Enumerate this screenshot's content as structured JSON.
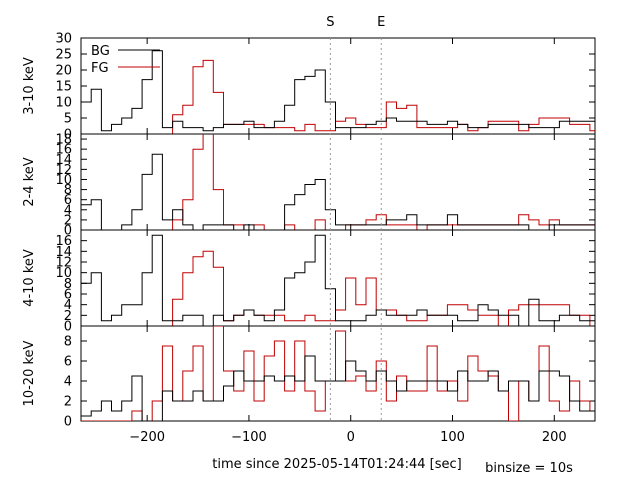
{
  "chart_data": {
    "type": "step",
    "markers": [
      {
        "label": "S",
        "x": -20
      },
      {
        "label": "E",
        "x": 30
      }
    ],
    "xlabel": "time since 2025-05-14T01:24:44 [sec]",
    "note": "binsize = 10s",
    "xlim": [
      -265,
      240
    ],
    "xticks": [
      -200,
      -100,
      0,
      100,
      200
    ],
    "bins_start": -265,
    "bin_width": 10,
    "legend": [
      {
        "name": "BG",
        "color": "#000000"
      },
      {
        "name": "FG",
        "color": "#c00000"
      }
    ],
    "panels": [
      {
        "ylabel": "3-10 keV",
        "ylim": [
          0,
          30
        ],
        "yticks": [
          0,
          5,
          10,
          15,
          20,
          25,
          30
        ],
        "series": [
          {
            "name": "BG",
            "color": "#000000",
            "values": [
              10,
              14,
              1,
              3,
              5,
              8,
              17,
              26,
              2,
              4,
              2,
              2,
              1,
              2,
              3,
              3,
              4,
              2,
              2,
              4,
              9,
              17,
              18,
              20,
              10,
              2,
              2,
              2,
              3,
              4,
              5,
              4,
              4,
              4,
              3,
              3,
              4,
              3,
              2,
              2,
              3,
              3,
              3,
              3,
              2,
              2,
              2,
              4,
              4,
              4,
              4
            ]
          },
          {
            "name": "FG",
            "color": "#c00000",
            "values": [
              0,
              0,
              0,
              0,
              0,
              0,
              0,
              0,
              0,
              6,
              9,
              21,
              23,
              13,
              3,
              3,
              3,
              3,
              2,
              2,
              2,
              1,
              3,
              1,
              1,
              4,
              5,
              3,
              2,
              2,
              10,
              8,
              9,
              2,
              2,
              2,
              2,
              3,
              1,
              2,
              4,
              4,
              4,
              1,
              3,
              5,
              5,
              5,
              3,
              3,
              1
            ]
          }
        ]
      },
      {
        "ylabel": "2-4 keV",
        "ylim": [
          0,
          19
        ],
        "yticks": [
          0,
          2,
          4,
          6,
          8,
          10,
          12,
          14,
          16,
          18
        ],
        "series": [
          {
            "name": "BG",
            "color": "#000000",
            "values": [
              5,
              6,
              0,
              0,
              1,
              4,
              11,
              15,
              2,
              4,
              1,
              0,
              1,
              1,
              1,
              0,
              1,
              0,
              0,
              0,
              5,
              7,
              9,
              10,
              4,
              1,
              1,
              1,
              1,
              1,
              2,
              2,
              3,
              1,
              1,
              1,
              3,
              1,
              1,
              1,
              1,
              1,
              1,
              1,
              0,
              0,
              1,
              1,
              1,
              1,
              1
            ]
          },
          {
            "name": "FG",
            "color": "#c00000",
            "values": [
              0,
              0,
              0,
              0,
              0,
              0,
              0,
              0,
              0,
              2,
              6,
              16,
              20,
              8,
              1,
              1,
              0,
              1,
              0,
              0,
              1,
              0,
              0,
              2,
              0,
              0,
              1,
              1,
              2,
              3,
              1,
              1,
              1,
              0,
              1,
              1,
              1,
              1,
              1,
              1,
              1,
              1,
              1,
              3,
              2,
              1,
              2,
              1,
              1,
              1,
              1
            ]
          }
        ]
      },
      {
        "ylabel": "4-10 keV",
        "ylim": [
          0,
          18
        ],
        "yticks": [
          0,
          2,
          4,
          6,
          8,
          10,
          12,
          14,
          16
        ],
        "series": [
          {
            "name": "BG",
            "color": "#000000",
            "values": [
              8,
              10,
              1,
              2,
              4,
              4,
              10,
              17,
              1,
              1,
              2,
              2,
              0,
              2,
              1,
              2,
              3,
              2,
              1,
              3,
              9,
              10,
              12,
              17,
              7,
              1,
              1,
              1,
              2,
              3,
              2,
              2,
              2,
              3,
              2,
              2,
              2,
              1,
              1,
              4,
              3,
              2,
              2,
              0,
              5,
              1,
              1,
              2,
              2,
              1,
              1
            ]
          },
          {
            "name": "FG",
            "color": "#c00000",
            "values": [
              0,
              0,
              0,
              0,
              0,
              0,
              0,
              0,
              0,
              5,
              10,
              13,
              14,
              11,
              1,
              2,
              3,
              2,
              2,
              2,
              1,
              1,
              2,
              1,
              1,
              3,
              9,
              4,
              9,
              3,
              3,
              2,
              1,
              1,
              2,
              2,
              4,
              4,
              3,
              2,
              2,
              0,
              3,
              4,
              4,
              4,
              4,
              4,
              2,
              2,
              0
            ]
          }
        ]
      },
      {
        "ylabel": "10-20 keV",
        "ylim": [
          0,
          9.5
        ],
        "yticks": [
          0,
          2,
          4,
          6,
          8
        ],
        "series": [
          {
            "name": "BG",
            "color": "#000000",
            "values": [
              0.5,
              1,
              2,
              1,
              2,
              4.5,
              0,
              0,
              3,
              2,
              2,
              3,
              2,
              2,
              3.5,
              5,
              4,
              4,
              4.5,
              4,
              4.5,
              4,
              6.5,
              4,
              4,
              4,
              6,
              5,
              4,
              5,
              4,
              3,
              4,
              4,
              4,
              4,
              3,
              5,
              4,
              4,
              5,
              3,
              4,
              4,
              2,
              5,
              5,
              4.5,
              2,
              1,
              1
            ]
          },
          {
            "name": "FG",
            "color": "#c00000",
            "values": [
              0,
              0,
              0,
              0,
              0,
              1,
              0,
              2,
              7.5,
              2,
              5,
              7.5,
              2,
              9.5,
              5,
              3,
              7,
              2,
              6.5,
              8,
              3,
              8,
              3,
              1,
              4,
              9,
              4,
              4.5,
              3,
              6,
              2,
              4.5,
              3,
              3,
              7.5,
              3,
              4,
              2,
              6.5,
              5,
              4.5,
              3,
              0,
              4,
              2,
              7.5,
              2,
              1,
              4,
              2,
              1
            ]
          }
        ]
      }
    ]
  }
}
